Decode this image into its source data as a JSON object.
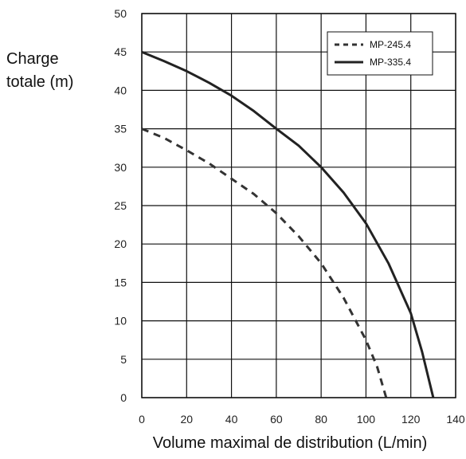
{
  "chart_data": {
    "type": "line",
    "ylabel_lines": [
      "Charge",
      "totale (m)"
    ],
    "xlabel": "Volume maximal de distribution (L/min)",
    "xlim": [
      0,
      140
    ],
    "ylim": [
      0,
      50
    ],
    "xticks": [
      0,
      20,
      40,
      60,
      80,
      100,
      120,
      140
    ],
    "yticks": [
      0,
      5,
      10,
      15,
      20,
      25,
      30,
      35,
      40,
      45,
      50
    ],
    "grid": true,
    "legend_position": "top-right",
    "series": [
      {
        "name": "MP-245.4",
        "style": "dashed",
        "color": "#333333",
        "x": [
          0,
          10,
          20,
          30,
          40,
          50,
          60,
          70,
          80,
          90,
          100,
          105,
          109
        ],
        "y": [
          35,
          33.8,
          32.2,
          30.5,
          28.5,
          26.5,
          24,
          21,
          17.5,
          13,
          7.5,
          4,
          0
        ]
      },
      {
        "name": "MP-335.4",
        "style": "solid",
        "color": "#222222",
        "x": [
          0,
          10,
          20,
          30,
          40,
          50,
          60,
          70,
          80,
          90,
          100,
          110,
          120,
          125,
          130
        ],
        "y": [
          45,
          43.8,
          42.5,
          41,
          39.3,
          37.3,
          35,
          32.8,
          30,
          26.7,
          22.7,
          17.5,
          11,
          6,
          0
        ]
      }
    ]
  }
}
